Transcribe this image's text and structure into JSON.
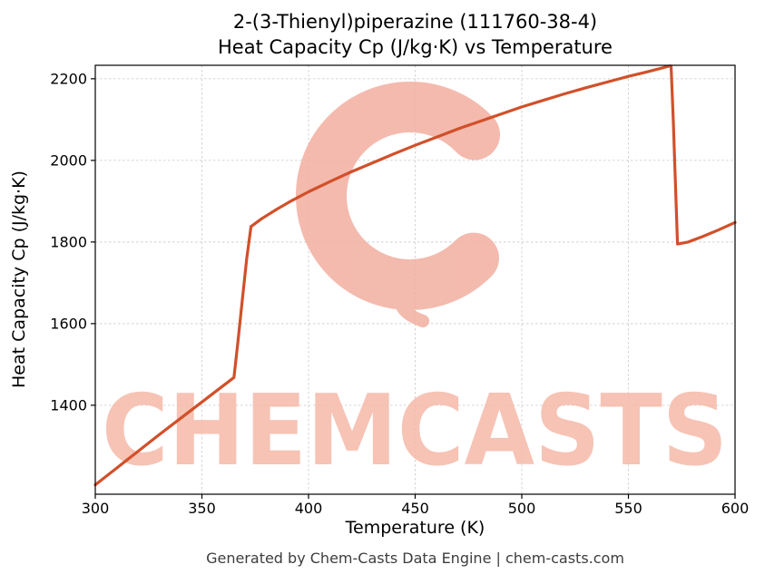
{
  "figure": {
    "title_line1": "2-(3-Thienyl)piperazine (111760-38-4)",
    "title_line2": "Heat Capacity Cp (J/kg·K) vs Temperature",
    "footer": "Generated by Chem-Casts Data Engine | chem-casts.com"
  },
  "watermark": {
    "text": "CHEMCASTS",
    "text_color": "#f5b9a9",
    "ring_color": "#f2aea0"
  },
  "chart_data": {
    "type": "line",
    "title": "2-(3-Thienyl)piperazine (111760-38-4) — Heat Capacity Cp (J/kg·K) vs Temperature",
    "xlabel": "Temperature (K)",
    "ylabel": "Heat Capacity Cp (J/kg·K)",
    "xlim": [
      300,
      600
    ],
    "ylim": [
      1182,
      2233
    ],
    "xticks": [
      300,
      350,
      400,
      450,
      500,
      550,
      600
    ],
    "yticks": [
      1400,
      1600,
      1800,
      2000,
      2200
    ],
    "grid": true,
    "legend": false,
    "line_color": "#d1502a",
    "series": [
      {
        "name": "Heat Capacity Cp (J/kg·K)",
        "points": [
          [
            300,
            1205
          ],
          [
            310,
            1246
          ],
          [
            320,
            1287
          ],
          [
            330,
            1328
          ],
          [
            340,
            1368
          ],
          [
            350,
            1408
          ],
          [
            360,
            1448
          ],
          [
            365,
            1468
          ],
          [
            367,
            1560
          ],
          [
            369,
            1660
          ],
          [
            371,
            1760
          ],
          [
            373,
            1838
          ],
          [
            378,
            1857
          ],
          [
            385,
            1880
          ],
          [
            392,
            1901
          ],
          [
            400,
            1923
          ],
          [
            410,
            1948
          ],
          [
            420,
            1972
          ],
          [
            430,
            1994
          ],
          [
            440,
            2016
          ],
          [
            450,
            2037
          ],
          [
            460,
            2057
          ],
          [
            470,
            2077
          ],
          [
            480,
            2095
          ],
          [
            490,
            2113
          ],
          [
            500,
            2131
          ],
          [
            510,
            2147
          ],
          [
            520,
            2163
          ],
          [
            530,
            2178
          ],
          [
            540,
            2192
          ],
          [
            550,
            2206
          ],
          [
            558,
            2216
          ],
          [
            564,
            2224
          ],
          [
            569,
            2231
          ],
          [
            570,
            2231
          ],
          [
            571,
            2100
          ],
          [
            572,
            1950
          ],
          [
            573,
            1795
          ],
          [
            578,
            1800
          ],
          [
            585,
            1814
          ],
          [
            592,
            1829
          ],
          [
            600,
            1848
          ]
        ]
      }
    ]
  }
}
